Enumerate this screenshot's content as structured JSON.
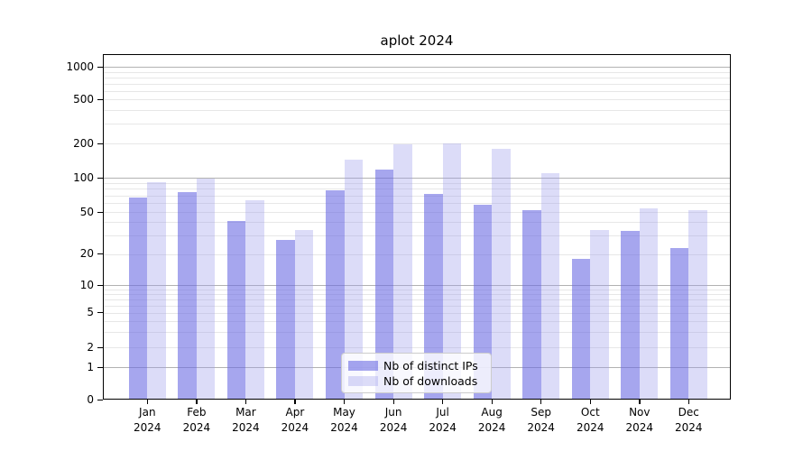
{
  "chart_data": {
    "type": "bar",
    "title": "aplot 2024",
    "months": [
      "Jan",
      "Feb",
      "Mar",
      "Apr",
      "May",
      "Jun",
      "Jul",
      "Aug",
      "Sep",
      "Oct",
      "Nov",
      "Dec"
    ],
    "year": "2024",
    "categories": [
      "Jan 2024",
      "Feb 2024",
      "Mar 2024",
      "Apr 2024",
      "May 2024",
      "Jun 2024",
      "Jul 2024",
      "Aug 2024",
      "Sep 2024",
      "Oct 2024",
      "Nov 2024",
      "Dec 2024"
    ],
    "series": [
      {
        "name": "Nb of distinct IPs",
        "color": "rgba(107,107,227,0.6)",
        "values": [
          67,
          75,
          41,
          27,
          77,
          117,
          72,
          58,
          52,
          18,
          33,
          23
        ]
      },
      {
        "name": "Nb of downloads",
        "color": "rgba(155,155,235,0.35)",
        "values": [
          91,
          98,
          63,
          34,
          145,
          195,
          200,
          180,
          110,
          34,
          54,
          52
        ]
      }
    ],
    "y_axis": {
      "scale": "asinh",
      "tick_labels": [
        "0",
        "1",
        "2",
        "5",
        "10",
        "20",
        "50",
        "100",
        "200",
        "500",
        "1000"
      ],
      "tick_values": [
        0,
        1,
        2,
        5,
        10,
        20,
        50,
        100,
        200,
        500,
        1000
      ],
      "ylim": [
        0,
        1100
      ],
      "grid": "both",
      "major_grid_values": [
        1,
        10,
        100,
        1000
      ]
    },
    "xlabel": "",
    "ylabel": "",
    "legend_position": "lower center"
  },
  "colors": {
    "bar_distinct_ips": "rgba(107,107,227,0.6)",
    "bar_downloads": "rgba(155,155,235,0.35)",
    "grid_major": "#b2b2b2",
    "grid_minor": "#e7e7e7",
    "spine": "#000000",
    "legend_border": "#cccccc"
  }
}
